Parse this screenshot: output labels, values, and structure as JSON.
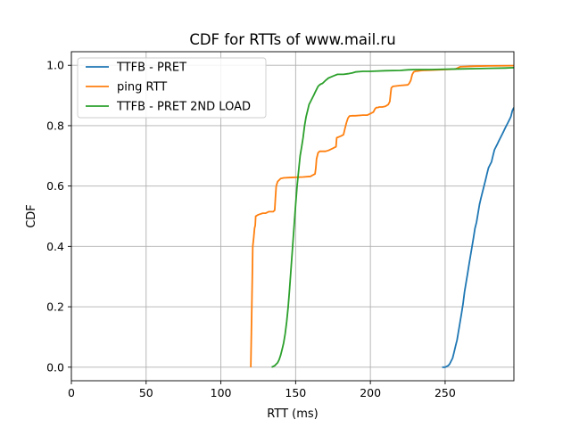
{
  "chart_data": {
    "type": "line",
    "title": "CDF for RTTs of www.mail.ru",
    "xlabel": "RTT (ms)",
    "ylabel": "CDF",
    "xlim": [
      0,
      296
    ],
    "ylim": [
      -0.045,
      1.045
    ],
    "xticks": [
      0,
      50,
      100,
      150,
      200,
      250
    ],
    "yticks": [
      0.0,
      0.2,
      0.4,
      0.6,
      0.8,
      1.0
    ],
    "grid": true,
    "legend": "top-left",
    "series": [
      {
        "name": "TTFB - PRET",
        "color": "#1f77b4",
        "x": [
          248,
          250,
          252,
          253,
          255,
          256,
          257,
          258,
          259,
          260,
          261,
          262,
          263,
          264,
          265,
          266,
          267,
          268,
          269,
          270,
          271,
          272,
          273,
          274,
          275,
          276,
          277,
          278,
          279,
          280,
          281,
          282,
          283,
          284,
          285,
          286,
          287,
          288,
          289,
          290,
          291,
          292,
          293,
          294,
          295,
          296
        ],
        "y": [
          0.0,
          0.0,
          0.005,
          0.01,
          0.03,
          0.05,
          0.07,
          0.09,
          0.12,
          0.15,
          0.18,
          0.21,
          0.25,
          0.28,
          0.31,
          0.34,
          0.37,
          0.4,
          0.43,
          0.46,
          0.48,
          0.51,
          0.54,
          0.56,
          0.58,
          0.6,
          0.62,
          0.64,
          0.66,
          0.67,
          0.68,
          0.7,
          0.72,
          0.73,
          0.74,
          0.75,
          0.76,
          0.77,
          0.78,
          0.79,
          0.8,
          0.81,
          0.82,
          0.83,
          0.85,
          0.86
        ]
      },
      {
        "name": "ping RTT",
        "color": "#ff7f0e",
        "x": [
          120,
          121,
          121.3,
          122,
          122.5,
          123,
          123.3,
          125,
          128,
          130,
          132,
          135,
          136,
          136.5,
          137,
          138,
          139,
          140,
          142,
          145,
          150,
          155,
          160,
          161,
          163,
          163.5,
          164,
          165,
          166,
          168,
          170,
          172,
          175,
          177,
          177.5,
          180,
          182,
          183,
          184,
          185,
          186,
          188,
          190,
          195,
          198,
          200,
          202,
          203,
          204,
          205,
          206,
          208,
          210,
          212,
          213,
          213.5,
          214,
          215,
          220,
          225,
          226,
          227,
          228,
          229,
          230,
          233,
          235,
          240,
          245,
          250,
          255,
          257,
          258,
          260,
          270,
          280,
          296
        ],
        "y": [
          0.0,
          0.3,
          0.4,
          0.43,
          0.46,
          0.47,
          0.5,
          0.505,
          0.51,
          0.51,
          0.515,
          0.515,
          0.52,
          0.56,
          0.6,
          0.615,
          0.62,
          0.625,
          0.627,
          0.628,
          0.629,
          0.63,
          0.632,
          0.635,
          0.64,
          0.66,
          0.69,
          0.71,
          0.715,
          0.715,
          0.715,
          0.718,
          0.725,
          0.73,
          0.76,
          0.765,
          0.77,
          0.79,
          0.81,
          0.825,
          0.832,
          0.833,
          0.833,
          0.835,
          0.835,
          0.84,
          0.845,
          0.855,
          0.86,
          0.86,
          0.862,
          0.862,
          0.864,
          0.87,
          0.88,
          0.905,
          0.925,
          0.93,
          0.933,
          0.935,
          0.94,
          0.95,
          0.97,
          0.978,
          0.98,
          0.982,
          0.983,
          0.984,
          0.985,
          0.986,
          0.987,
          0.988,
          0.99,
          0.995,
          0.997,
          0.998,
          0.999
        ]
      },
      {
        "name": "TTFB - PRET 2ND LOAD",
        "color": "#2ca02c",
        "x": [
          134,
          136,
          138,
          139,
          140,
          141,
          142,
          143,
          144,
          145,
          146,
          147,
          148,
          149,
          150,
          151,
          152,
          153,
          154,
          155,
          156,
          157,
          158,
          159,
          160,
          161,
          162,
          163,
          164,
          165,
          166,
          167,
          168,
          169,
          170,
          172,
          174,
          176,
          178,
          180,
          182,
          185,
          188,
          190,
          195,
          200,
          210,
          220,
          225,
          230,
          240,
          250,
          260,
          270,
          280,
          290,
          296
        ],
        "y": [
          0.0,
          0.005,
          0.015,
          0.025,
          0.04,
          0.06,
          0.08,
          0.11,
          0.15,
          0.2,
          0.26,
          0.33,
          0.4,
          0.47,
          0.54,
          0.6,
          0.65,
          0.7,
          0.73,
          0.76,
          0.8,
          0.83,
          0.85,
          0.87,
          0.88,
          0.89,
          0.9,
          0.91,
          0.92,
          0.93,
          0.935,
          0.938,
          0.94,
          0.945,
          0.95,
          0.958,
          0.962,
          0.966,
          0.97,
          0.97,
          0.97,
          0.972,
          0.975,
          0.978,
          0.98,
          0.98,
          0.982,
          0.983,
          0.985,
          0.986,
          0.986,
          0.987,
          0.988,
          0.989,
          0.99,
          0.991,
          0.992
        ]
      }
    ]
  }
}
